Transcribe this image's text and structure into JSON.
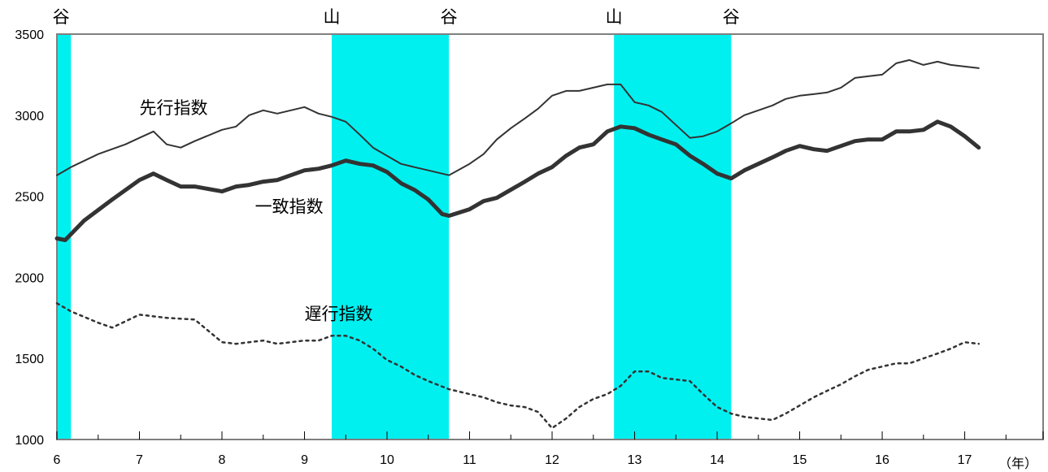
{
  "chart_data": {
    "type": "line",
    "x_unit_label": "（年）",
    "x_ticks": [
      6,
      7,
      8,
      9,
      10,
      11,
      12,
      13,
      14,
      15,
      16,
      17
    ],
    "y_ticks": [
      1000,
      1500,
      2000,
      2500,
      3000,
      3500
    ],
    "xlim": [
      6,
      17.95
    ],
    "ylim": [
      1000,
      3500
    ],
    "grid": false,
    "recession_shading_color": "#00f0f0",
    "recessions": [
      {
        "start": 6.0,
        "end": 6.17
      },
      {
        "start": 9.33,
        "end": 10.75
      },
      {
        "start": 12.75,
        "end": 14.17
      }
    ],
    "phase_markers": [
      {
        "x": 6.05,
        "label": "谷"
      },
      {
        "x": 9.33,
        "label": "山"
      },
      {
        "x": 10.75,
        "label": "谷"
      },
      {
        "x": 12.75,
        "label": "山"
      },
      {
        "x": 14.17,
        "label": "谷"
      }
    ],
    "series": [
      {
        "name": "先行指数",
        "style": "thin",
        "color": "#333333",
        "x": [
          6.0,
          6.17,
          6.5,
          6.83,
          7.0,
          7.17,
          7.33,
          7.5,
          7.67,
          8.0,
          8.17,
          8.33,
          8.5,
          8.67,
          9.0,
          9.17,
          9.33,
          9.5,
          9.67,
          9.83,
          10.0,
          10.17,
          10.33,
          10.5,
          10.75,
          11.0,
          11.17,
          11.33,
          11.5,
          11.67,
          11.83,
          12.0,
          12.17,
          12.33,
          12.5,
          12.67,
          12.83,
          13.0,
          13.17,
          13.33,
          13.5,
          13.67,
          13.83,
          14.0,
          14.17,
          14.33,
          14.5,
          14.67,
          14.83,
          15.0,
          15.17,
          15.33,
          15.5,
          15.67,
          15.83,
          16.0,
          16.17,
          16.33,
          16.5,
          16.67,
          16.83,
          17.0,
          17.17
        ],
        "values": [
          2630,
          2680,
          2760,
          2820,
          2860,
          2900,
          2820,
          2800,
          2840,
          2910,
          2930,
          3000,
          3030,
          3010,
          3050,
          3010,
          2990,
          2960,
          2880,
          2800,
          2750,
          2700,
          2680,
          2660,
          2630,
          2700,
          2760,
          2850,
          2920,
          2980,
          3040,
          3120,
          3150,
          3150,
          3170,
          3190,
          3190,
          3080,
          3060,
          3020,
          2940,
          2860,
          2870,
          2900,
          2950,
          3000,
          3030,
          3060,
          3100,
          3120,
          3130,
          3140,
          3170,
          3230,
          3240,
          3250,
          3320,
          3340,
          3310,
          3330,
          3310,
          3300,
          3290
        ]
      },
      {
        "name": "一致指数",
        "style": "thick",
        "color": "#333333",
        "x": [
          6.0,
          6.1,
          6.33,
          6.67,
          7.0,
          7.17,
          7.33,
          7.5,
          7.67,
          8.0,
          8.17,
          8.33,
          8.5,
          8.67,
          9.0,
          9.17,
          9.33,
          9.5,
          9.67,
          9.83,
          10.0,
          10.17,
          10.33,
          10.5,
          10.67,
          10.75,
          11.0,
          11.17,
          11.33,
          11.5,
          11.67,
          11.83,
          12.0,
          12.17,
          12.33,
          12.5,
          12.67,
          12.83,
          13.0,
          13.17,
          13.33,
          13.5,
          13.67,
          13.83,
          14.0,
          14.17,
          14.33,
          14.5,
          14.67,
          14.83,
          15.0,
          15.17,
          15.33,
          15.5,
          15.67,
          15.83,
          16.0,
          16.17,
          16.33,
          16.5,
          16.67,
          16.83,
          17.0,
          17.17
        ],
        "values": [
          2240,
          2230,
          2350,
          2480,
          2600,
          2640,
          2600,
          2560,
          2560,
          2530,
          2560,
          2570,
          2590,
          2600,
          2660,
          2670,
          2690,
          2720,
          2700,
          2690,
          2650,
          2580,
          2540,
          2480,
          2390,
          2380,
          2420,
          2470,
          2490,
          2540,
          2590,
          2640,
          2680,
          2750,
          2800,
          2820,
          2900,
          2930,
          2920,
          2880,
          2850,
          2820,
          2750,
          2700,
          2640,
          2610,
          2660,
          2700,
          2740,
          2780,
          2810,
          2790,
          2780,
          2810,
          2840,
          2850,
          2850,
          2900,
          2900,
          2910,
          2960,
          2930,
          2870,
          2800
        ]
      },
      {
        "name": "遅行指数",
        "style": "dotted",
        "color": "#333333",
        "x": [
          6.0,
          6.17,
          6.5,
          6.67,
          7.0,
          7.33,
          7.67,
          8.0,
          8.17,
          8.33,
          8.5,
          8.67,
          9.0,
          9.17,
          9.33,
          9.5,
          9.67,
          9.83,
          10.0,
          10.17,
          10.33,
          10.5,
          10.75,
          11.0,
          11.17,
          11.33,
          11.5,
          11.67,
          11.83,
          12.0,
          12.17,
          12.33,
          12.5,
          12.67,
          12.83,
          13.0,
          13.17,
          13.33,
          13.5,
          13.67,
          13.83,
          14.0,
          14.17,
          14.33,
          14.5,
          14.67,
          14.83,
          15.0,
          15.17,
          15.33,
          15.5,
          15.67,
          15.83,
          16.0,
          16.17,
          16.33,
          16.5,
          16.67,
          16.83,
          17.0,
          17.17
        ],
        "values": [
          1840,
          1790,
          1720,
          1690,
          1770,
          1750,
          1740,
          1600,
          1590,
          1600,
          1610,
          1590,
          1610,
          1610,
          1640,
          1640,
          1610,
          1560,
          1490,
          1450,
          1400,
          1360,
          1310,
          1280,
          1260,
          1230,
          1210,
          1200,
          1170,
          1070,
          1130,
          1200,
          1250,
          1280,
          1330,
          1420,
          1420,
          1380,
          1370,
          1360,
          1280,
          1200,
          1160,
          1140,
          1130,
          1120,
          1160,
          1210,
          1260,
          1300,
          1340,
          1390,
          1430,
          1450,
          1470,
          1470,
          1500,
          1530,
          1560,
          1600,
          1590
        ]
      }
    ],
    "series_labels": [
      {
        "series": 0,
        "text": "先行指数",
        "at_x": 7.0,
        "at_y": 3010
      },
      {
        "series": 1,
        "text": "一致指数",
        "at_x": 8.4,
        "at_y": 2400
      },
      {
        "series": 2,
        "text": "遅行指数",
        "at_x": 9.0,
        "at_y": 1740
      }
    ]
  }
}
